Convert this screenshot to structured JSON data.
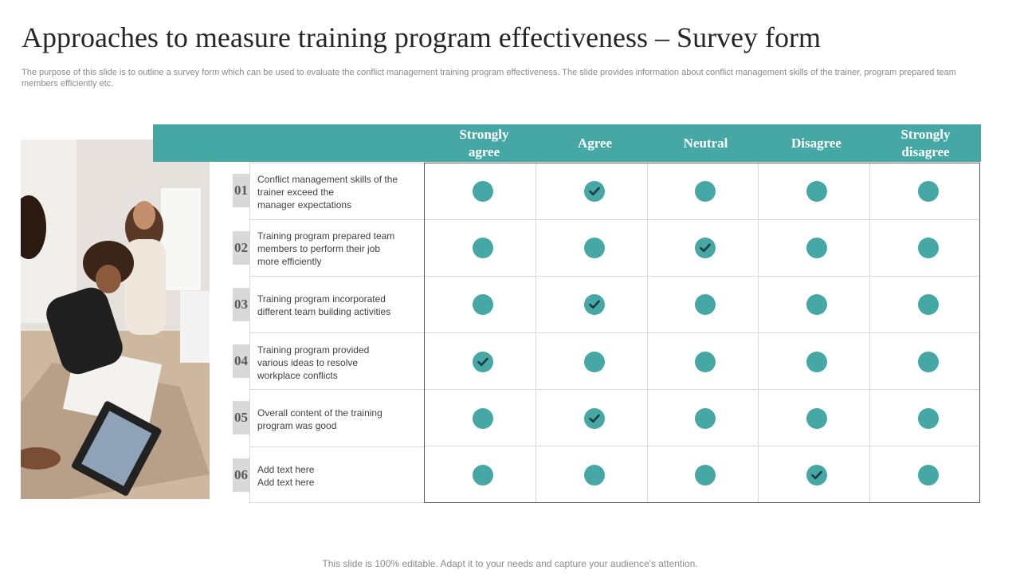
{
  "page": {
    "title": "Approaches to measure training program effectiveness – Survey form",
    "subtitle": "The purpose of this slide is to outline a survey form which can be used to evaluate the conflict management training program effectiveness. The slide provides information about conflict management skills of the trainer, program prepared team members efficiently etc.",
    "footer": "This slide is 100% editable. Adapt it to your needs and capture your audience's attention."
  },
  "survey": {
    "columns": [
      [
        "Strongly",
        "agree"
      ],
      [
        "Agree"
      ],
      [
        "Neutral"
      ],
      [
        "Disagree"
      ],
      [
        "Strongly",
        "disagree"
      ]
    ],
    "rows": [
      {
        "num": "01",
        "lines": [
          "Conflict management skills of the",
          "trainer exceed the",
          "manager expectations"
        ],
        "selected": 1
      },
      {
        "num": "02",
        "lines": [
          "Training program prepared team",
          "members to perform their job",
          "more efficiently"
        ],
        "selected": 2
      },
      {
        "num": "03",
        "lines": [
          "Training program incorporated",
          "different team building activities"
        ],
        "selected": 1
      },
      {
        "num": "04",
        "lines": [
          "Training program provided",
          "various ideas to resolve",
          "workplace conflicts"
        ],
        "selected": 0
      },
      {
        "num": "05",
        "lines": [
          "Overall content of the training",
          "program was good"
        ],
        "selected": 1
      },
      {
        "num": "06",
        "lines": [
          "Add text here",
          "Add text here"
        ],
        "selected": 3
      }
    ]
  },
  "colors": {
    "accent": "#45a8a5",
    "check": "#1f3b3c"
  },
  "icons": {
    "check": "check-icon",
    "photo": "team-meeting-photo"
  }
}
